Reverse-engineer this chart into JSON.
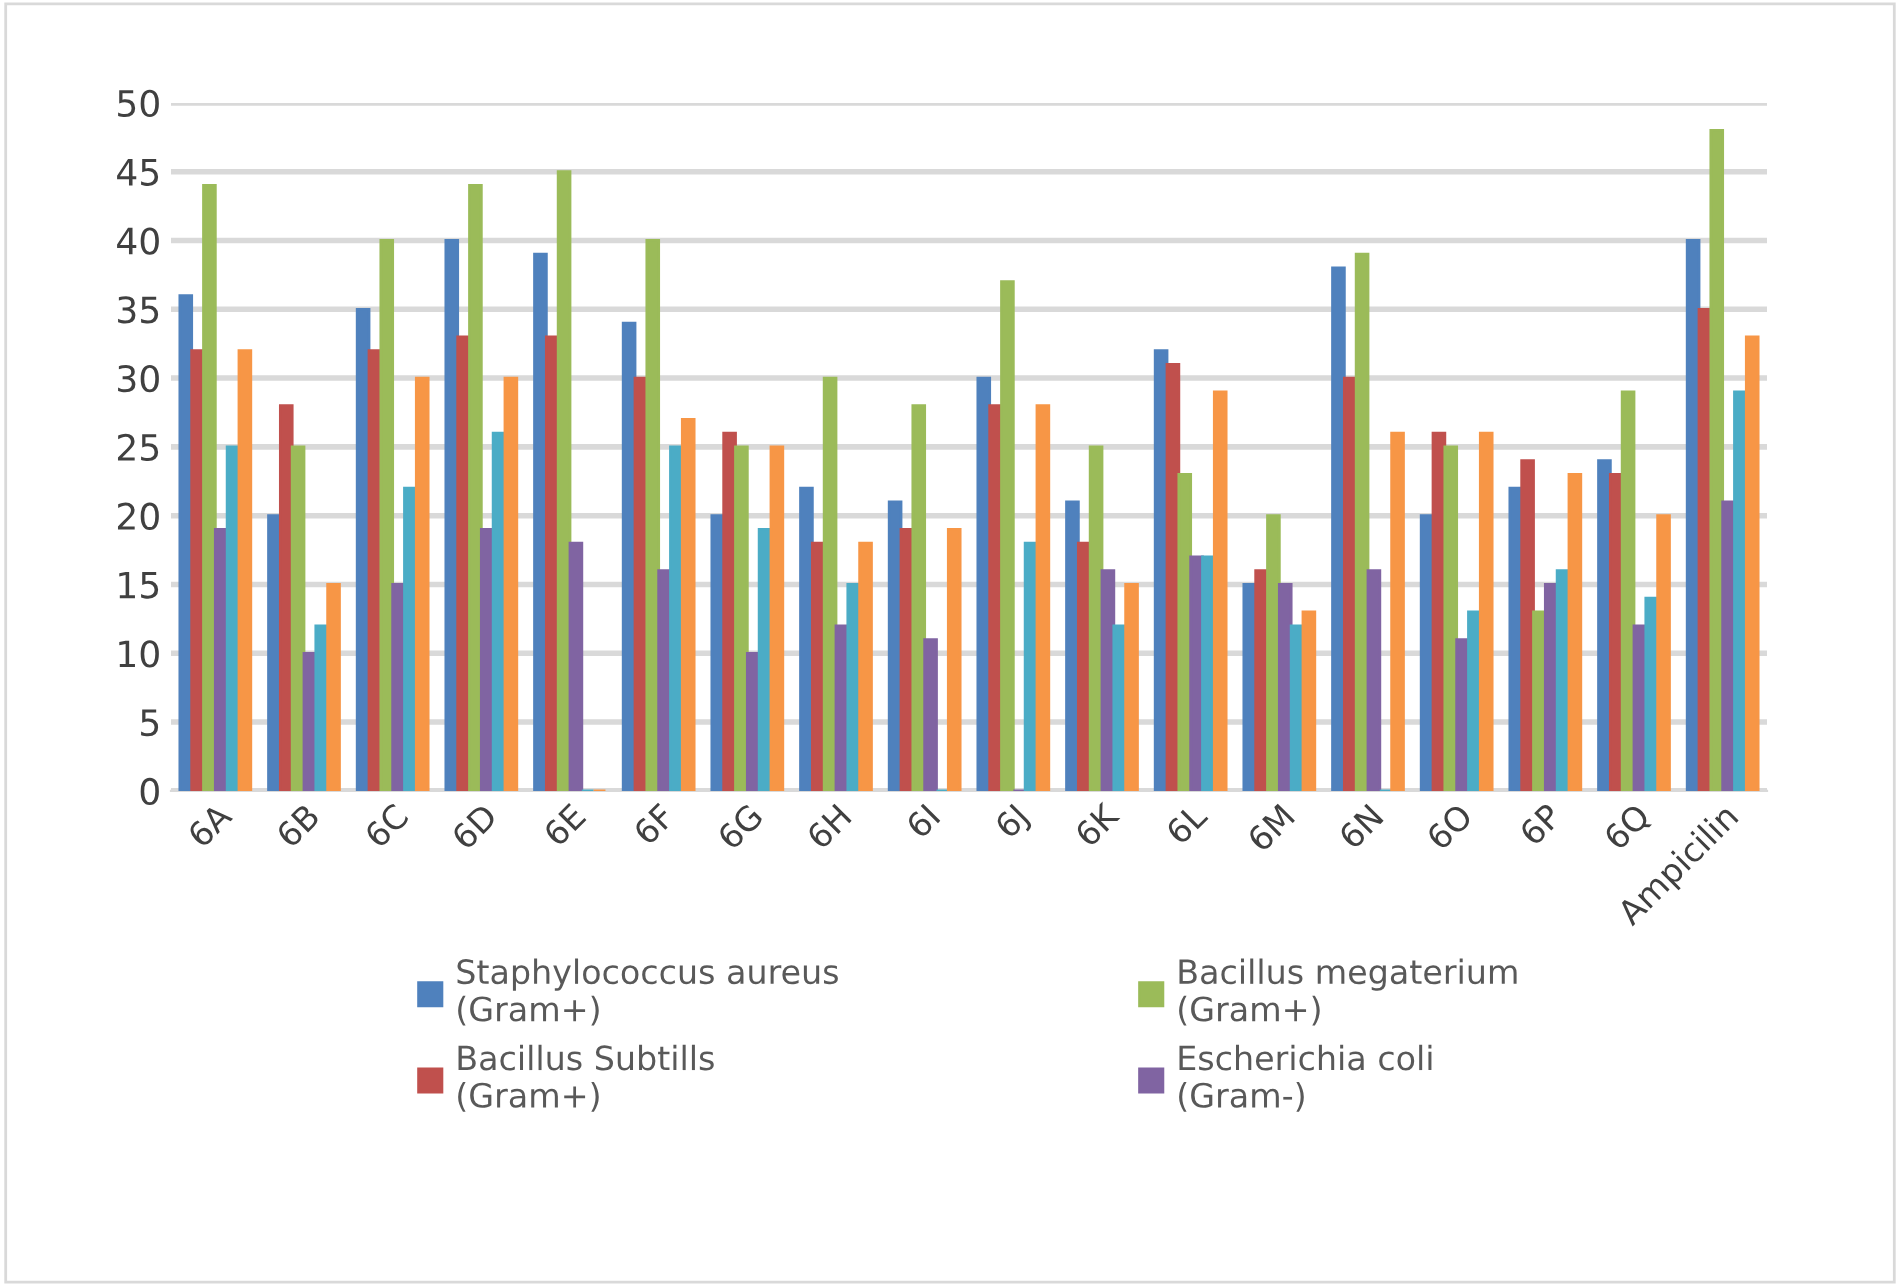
{
  "chart_data": {
    "type": "bar",
    "categories": [
      "6A",
      "6B",
      "6C",
      "6D",
      "6E",
      "6F",
      "6G",
      "6H",
      "6I",
      "6J",
      "6K",
      "6L",
      "6M",
      "6N",
      "6O",
      "6P",
      "6Q",
      "Ampicilin"
    ],
    "series": [
      {
        "name": "Staphylococcus aureus\n(Gram+)",
        "color": "#4f81bd",
        "values": [
          36,
          20,
          35,
          40,
          39,
          34,
          20,
          22,
          21,
          30,
          21,
          32,
          15,
          38,
          20,
          22,
          24,
          40
        ]
      },
      {
        "name": "Bacillus Subtills\n(Gram+)",
        "color": "#c0504d",
        "values": [
          32,
          28,
          32,
          33,
          33,
          30,
          26,
          18,
          19,
          28,
          18,
          31,
          16,
          30,
          26,
          24,
          23,
          35
        ]
      },
      {
        "name": "Bacillus megaterium\n(Gram+)",
        "color": "#9bbb59",
        "values": [
          44,
          25,
          40,
          44,
          45,
          40,
          25,
          30,
          28,
          37,
          25,
          23,
          20,
          39,
          25,
          13,
          29,
          48
        ]
      },
      {
        "name": "Escherichia coli\n(Gram-)",
        "color": "#8064a2",
        "values": [
          19,
          10,
          15,
          19,
          18,
          16,
          10,
          12,
          11,
          0,
          16,
          17,
          15,
          16,
          11,
          15,
          12,
          21
        ]
      },
      {
        "color": "#4bacc6",
        "values": [
          25,
          12,
          22,
          26,
          0,
          25,
          19,
          15,
          0,
          18,
          12,
          17,
          12,
          0,
          13,
          16,
          14,
          29
        ]
      },
      {
        "color": "#f79646",
        "values": [
          32,
          15,
          30,
          30,
          0,
          27,
          25,
          18,
          19,
          28,
          15,
          29,
          13,
          26,
          26,
          23,
          20,
          33
        ]
      }
    ],
    "ylim": [
      0,
      50
    ],
    "yticks": [
      0,
      5,
      10,
      15,
      20,
      25,
      30,
      35,
      40,
      45,
      50
    ],
    "grid": "y",
    "legend": "bottom"
  }
}
